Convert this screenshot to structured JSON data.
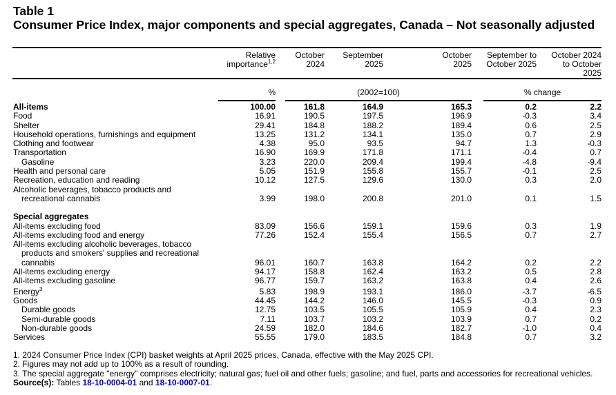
{
  "title": {
    "label": "Table 1",
    "text": "Consumer Price Index, major components and special aggregates, Canada – Not seasonally adjusted"
  },
  "columns": [
    {
      "lines": [
        "Relative",
        "importance"
      ],
      "sup": "1,2"
    },
    {
      "lines": [
        "October",
        "2024"
      ]
    },
    {
      "lines": [
        "September",
        "2025"
      ]
    },
    {
      "lines": [
        "October",
        "2025"
      ]
    },
    {
      "lines": [
        "September to",
        "October 2025"
      ]
    },
    {
      "lines": [
        "October 2024",
        "to October",
        "2025"
      ]
    }
  ],
  "units": {
    "percent": "%",
    "index": "(2002=100)",
    "change": "% change"
  },
  "rows": [
    {
      "label": [
        "All-items"
      ],
      "bold": true,
      "values": [
        "100.00",
        "161.8",
        "164.9",
        "165.3",
        "0.2",
        "2.2"
      ]
    },
    {
      "label": [
        "Food"
      ],
      "values": [
        "16.91",
        "190.5",
        "197.5",
        "196.9",
        "-0.3",
        "3.4"
      ]
    },
    {
      "label": [
        "Shelter"
      ],
      "values": [
        "29.41",
        "184.8",
        "188.2",
        "189.4",
        "0.6",
        "2.5"
      ]
    },
    {
      "label": [
        "Household operations, furnishings and equipment"
      ],
      "values": [
        "13.25",
        "131.2",
        "134.1",
        "135.0",
        "0.7",
        "2.9"
      ]
    },
    {
      "label": [
        "Clothing and footwear"
      ],
      "values": [
        "4.38",
        "95.0",
        "93.5",
        "94.7",
        "1.3",
        "-0.3"
      ]
    },
    {
      "label": [
        "Transportation"
      ],
      "values": [
        "16.90",
        "169.9",
        "171.8",
        "171.1",
        "-0.4",
        "0.7"
      ]
    },
    {
      "label": [
        "Gasoline"
      ],
      "indent": true,
      "values": [
        "3.23",
        "220.0",
        "209.4",
        "199.4",
        "-4.8",
        "-9.4"
      ]
    },
    {
      "label": [
        "Health and personal care"
      ],
      "values": [
        "5.05",
        "151.9",
        "155.8",
        "155.7",
        "-0.1",
        "2.5"
      ]
    },
    {
      "label": [
        "Recreation, education and reading"
      ],
      "values": [
        "10.12",
        "127.5",
        "129.6",
        "130.0",
        "0.3",
        "2.0"
      ]
    },
    {
      "label": [
        "Alcoholic beverages, tobacco products and",
        "recreational cannabis"
      ],
      "values": [
        "3.99",
        "198.0",
        "200.8",
        "201.0",
        "0.1",
        "1.5"
      ]
    },
    {
      "gap": true
    },
    {
      "label": [
        "Special aggregates"
      ],
      "bold": true,
      "values": []
    },
    {
      "label": [
        "All-items excluding food"
      ],
      "values": [
        "83.09",
        "156.6",
        "159.1",
        "159.6",
        "0.3",
        "1.9"
      ]
    },
    {
      "label": [
        "All-items excluding food and energy"
      ],
      "values": [
        "77.26",
        "152.4",
        "155.4",
        "156.5",
        "0.7",
        "2.7"
      ]
    },
    {
      "label": [
        "All-items excluding alcoholic beverages, tobacco",
        "products and smokers' supplies and recreational",
        "cannabis"
      ],
      "values": [
        "96.01",
        "160.7",
        "163.8",
        "164.2",
        "0.2",
        "2.2"
      ]
    },
    {
      "label": [
        "All-items excluding energy"
      ],
      "values": [
        "94.17",
        "158.8",
        "162.4",
        "163.2",
        "0.5",
        "2.8"
      ]
    },
    {
      "label": [
        "All-items excluding gasoline"
      ],
      "values": [
        "96.77",
        "159.7",
        "163.2",
        "163.8",
        "0.4",
        "2.6"
      ]
    },
    {
      "label": [
        "Energy"
      ],
      "sup": "3",
      "values": [
        "5.83",
        "198.9",
        "193.1",
        "186.0",
        "-3.7",
        "-6.5"
      ]
    },
    {
      "label": [
        "Goods"
      ],
      "values": [
        "44.45",
        "144.2",
        "146.0",
        "145.5",
        "-0.3",
        "0.9"
      ]
    },
    {
      "label": [
        "Durable goods"
      ],
      "indent": true,
      "values": [
        "12.75",
        "103.5",
        "105.5",
        "105.9",
        "0.4",
        "2.3"
      ]
    },
    {
      "label": [
        "Semi-durable goods"
      ],
      "indent": true,
      "values": [
        "7.11",
        "103.7",
        "103.2",
        "103.9",
        "0.7",
        "0.2"
      ]
    },
    {
      "label": [
        "Non-durable goods"
      ],
      "indent": true,
      "values": [
        "24.59",
        "182.0",
        "184.6",
        "182.7",
        "-1.0",
        "0.4"
      ]
    },
    {
      "label": [
        "Services"
      ],
      "values": [
        "55.55",
        "179.0",
        "183.5",
        "184.8",
        "0.7",
        "3.2"
      ]
    }
  ],
  "footnotes": [
    "1.  2024 Consumer Price Index (CPI) basket weights at April 2025 prices, Canada, effective with the May 2025 CPI.",
    "2.  Figures may not add up to 100% as a result of rounding.",
    "3.  The special aggregate \"energy\" comprises electricity; natural gas; fuel oil and other fuels; gasoline; and fuel, parts and accessories for recreational vehicles."
  ],
  "source": {
    "label": "Source(s):",
    "prefix": "Tables",
    "link1": "18-10-0004-01",
    "and": "and",
    "link2": "18-10-0007-01",
    "suffix": "."
  }
}
